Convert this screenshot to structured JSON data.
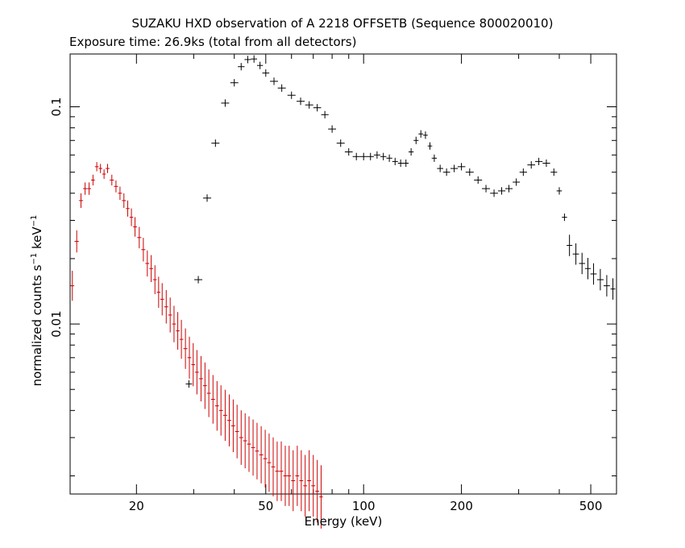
{
  "chart_data": {
    "type": "scatter",
    "title": "SUZAKU HXD observation of A 2218 OFFSETB (Sequence 800020010)",
    "subtitle": "Exposure time: 26.9ks (total from all detectors)",
    "xlabel": "Energy (keV)",
    "ylabel_parts": {
      "main": "normalized counts s",
      "exp1": "−1",
      "mid": " keV",
      "exp2": "−1"
    },
    "x_scale": "log",
    "y_scale": "log",
    "xlim": [
      12.5,
      600
    ],
    "ylim": [
      0.00165,
      0.175
    ],
    "x_ticks": [
      {
        "value": 20,
        "label": "20"
      },
      {
        "value": 50,
        "label": "50"
      },
      {
        "value": 100,
        "label": "100"
      },
      {
        "value": 200,
        "label": "200"
      },
      {
        "value": 500,
        "label": "500"
      }
    ],
    "y_ticks": [
      {
        "value": 0.1,
        "label": "0.1"
      },
      {
        "value": 0.01,
        "label": "0.01"
      }
    ],
    "grid": false,
    "legend": "none",
    "series": [
      {
        "color": "#000000",
        "points": [
          [
            29,
            0.0053
          ],
          [
            31,
            0.016
          ],
          [
            33,
            0.038
          ],
          [
            35,
            0.068
          ],
          [
            37.5,
            0.104
          ],
          [
            40,
            0.129
          ],
          [
            42,
            0.153
          ],
          [
            44,
            0.165
          ],
          [
            46,
            0.166
          ],
          [
            48,
            0.155
          ],
          [
            50,
            0.143
          ],
          [
            53,
            0.131
          ],
          [
            56,
            0.122
          ],
          [
            60,
            0.113
          ],
          [
            64,
            0.106
          ],
          [
            68,
            0.102
          ],
          [
            72,
            0.099
          ],
          [
            76,
            0.092
          ],
          [
            80,
            0.079
          ],
          [
            85,
            0.068
          ],
          [
            90,
            0.062
          ],
          [
            95,
            0.059
          ],
          [
            100,
            0.059
          ],
          [
            105,
            0.059
          ],
          [
            110,
            0.06
          ],
          [
            115,
            0.059
          ],
          [
            120,
            0.058
          ],
          [
            125,
            0.056
          ],
          [
            130,
            0.055
          ],
          [
            135,
            0.055
          ],
          [
            140,
            0.062
          ],
          [
            145,
            0.07
          ],
          [
            150,
            0.075
          ],
          [
            155,
            0.074
          ],
          [
            160,
            0.066
          ],
          [
            165,
            0.058
          ],
          [
            172,
            0.052
          ],
          [
            180,
            0.05
          ],
          [
            190,
            0.052
          ],
          [
            200,
            0.053
          ],
          [
            212,
            0.05
          ],
          [
            225,
            0.046
          ],
          [
            238,
            0.042
          ],
          [
            252,
            0.04
          ],
          [
            266,
            0.041
          ],
          [
            280,
            0.042
          ],
          [
            295,
            0.045
          ],
          [
            310,
            0.05
          ],
          [
            328,
            0.054
          ],
          [
            346,
            0.056
          ],
          [
            365,
            0.055
          ],
          [
            385,
            0.05
          ],
          [
            400,
            0.041
          ],
          [
            415,
            0.031
          ],
          [
            430,
            0.023
          ],
          [
            450,
            0.021
          ],
          [
            470,
            0.019
          ],
          [
            490,
            0.018
          ],
          [
            510,
            0.017
          ],
          [
            535,
            0.016
          ],
          [
            560,
            0.015
          ],
          [
            585,
            0.0145
          ]
        ]
      },
      {
        "color": "#cc0000",
        "points": [
          [
            12.7,
            0.015
          ],
          [
            13.1,
            0.024
          ],
          [
            13.5,
            0.037
          ],
          [
            13.9,
            0.042
          ],
          [
            14.3,
            0.042
          ],
          [
            14.7,
            0.046
          ],
          [
            15.1,
            0.053
          ],
          [
            15.5,
            0.052
          ],
          [
            15.9,
            0.049
          ],
          [
            16.3,
            0.052
          ],
          [
            16.8,
            0.046
          ],
          [
            17.3,
            0.043
          ],
          [
            17.8,
            0.04
          ],
          [
            18.3,
            0.037
          ],
          [
            18.8,
            0.034
          ],
          [
            19.3,
            0.031
          ],
          [
            19.8,
            0.028
          ],
          [
            20.4,
            0.025
          ],
          [
            21.0,
            0.022
          ],
          [
            21.6,
            0.019
          ],
          [
            22.2,
            0.018
          ],
          [
            22.8,
            0.016
          ],
          [
            23.4,
            0.014
          ],
          [
            24.0,
            0.013
          ],
          [
            24.7,
            0.012
          ],
          [
            25.4,
            0.011
          ],
          [
            26.1,
            0.01
          ],
          [
            26.8,
            0.0093
          ],
          [
            27.5,
            0.0085
          ],
          [
            28.3,
            0.0077
          ],
          [
            29.1,
            0.007
          ],
          [
            29.9,
            0.0065
          ],
          [
            30.7,
            0.006
          ],
          [
            31.6,
            0.0056
          ],
          [
            32.5,
            0.0052
          ],
          [
            33.4,
            0.0048
          ],
          [
            34.4,
            0.0045
          ],
          [
            35.4,
            0.0042
          ],
          [
            36.4,
            0.004
          ],
          [
            37.5,
            0.0038
          ],
          [
            38.6,
            0.0036
          ],
          [
            39.7,
            0.0034
          ],
          [
            40.8,
            0.0032
          ],
          [
            42.0,
            0.003
          ],
          [
            43.2,
            0.0029
          ],
          [
            44.4,
            0.0028
          ],
          [
            45.7,
            0.0027
          ],
          [
            47.0,
            0.0026
          ],
          [
            48.4,
            0.0025
          ],
          [
            49.8,
            0.0024
          ],
          [
            51.2,
            0.0023
          ],
          [
            52.7,
            0.0022
          ],
          [
            54.2,
            0.0021
          ],
          [
            55.8,
            0.0021
          ],
          [
            57.4,
            0.002
          ],
          [
            59.0,
            0.002
          ],
          [
            60.7,
            0.0019
          ],
          [
            62.5,
            0.002
          ],
          [
            64.3,
            0.0019
          ],
          [
            66.1,
            0.0018
          ],
          [
            68.0,
            0.0019
          ],
          [
            70.0,
            0.0018
          ],
          [
            72.0,
            0.0017
          ],
          [
            74.0,
            0.0016
          ]
        ]
      }
    ]
  }
}
